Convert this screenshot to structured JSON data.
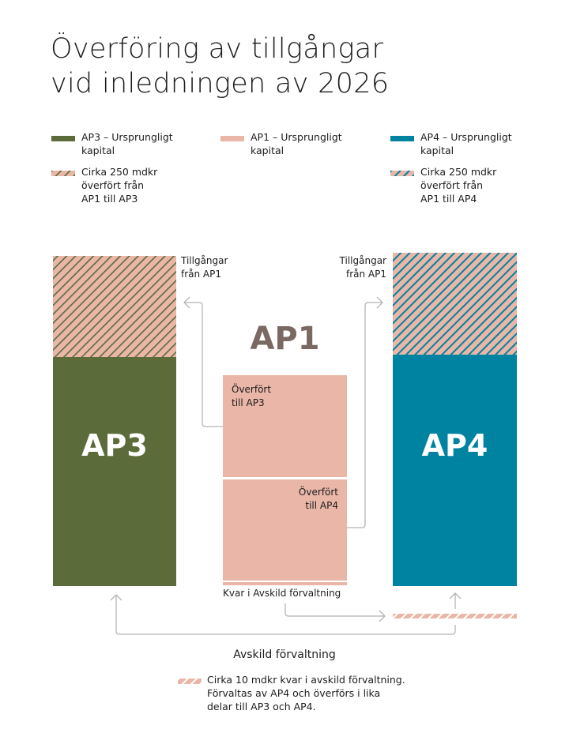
{
  "title": {
    "line1": "Överföring av tillgångar",
    "line2": "vid inledningen av 2026"
  },
  "colors": {
    "ap3": "#5c6b3a",
    "ap1": "#e9b6a8",
    "ap4": "#0083a0",
    "arrow": "#b5b5b5",
    "ap1_label": "#7a6862"
  },
  "legend": [
    {
      "text1": "AP3 – Ursprungligt",
      "text2": "kapital",
      "swatch": "solid-ap3"
    },
    {
      "text1": "AP1 – Ursprungligt",
      "text2": "kapital",
      "swatch": "solid-ap1"
    },
    {
      "text1": "AP4 – Ursprungligt",
      "text2": "kapital",
      "swatch": "solid-ap4"
    },
    {
      "text1": "Cirka 250 mdkr",
      "text2": "överfört från",
      "text3": "AP1 till AP3",
      "swatch": "hatch-ap3"
    },
    {
      "text1": "Cirka 250 mdkr",
      "text2": "överfört från",
      "text3": "AP1 till AP4",
      "swatch": "hatch-ap4"
    }
  ],
  "diagram": {
    "ap3_label": "AP3",
    "ap1_label": "AP1",
    "ap4_label": "AP4",
    "left_assets": {
      "l1": "Tillgångar",
      "l2": "från AP1"
    },
    "right_assets": {
      "l1": "Tillgångar",
      "l2": "från AP1"
    },
    "to_ap3": {
      "l1": "Överfört",
      "l2": "till AP3"
    },
    "to_ap4": {
      "l1": "Överfört",
      "l2": "till AP4"
    },
    "remaining": "Kvar i Avskild förvaltning",
    "separate_title": "Avskild förvaltning"
  },
  "footnote": {
    "l1": "Cirka 10 mdkr kvar i avskild förvaltning.",
    "l2": "Förvaltas av AP4 och överförs i lika",
    "l3": "delar till AP3 och AP4."
  }
}
